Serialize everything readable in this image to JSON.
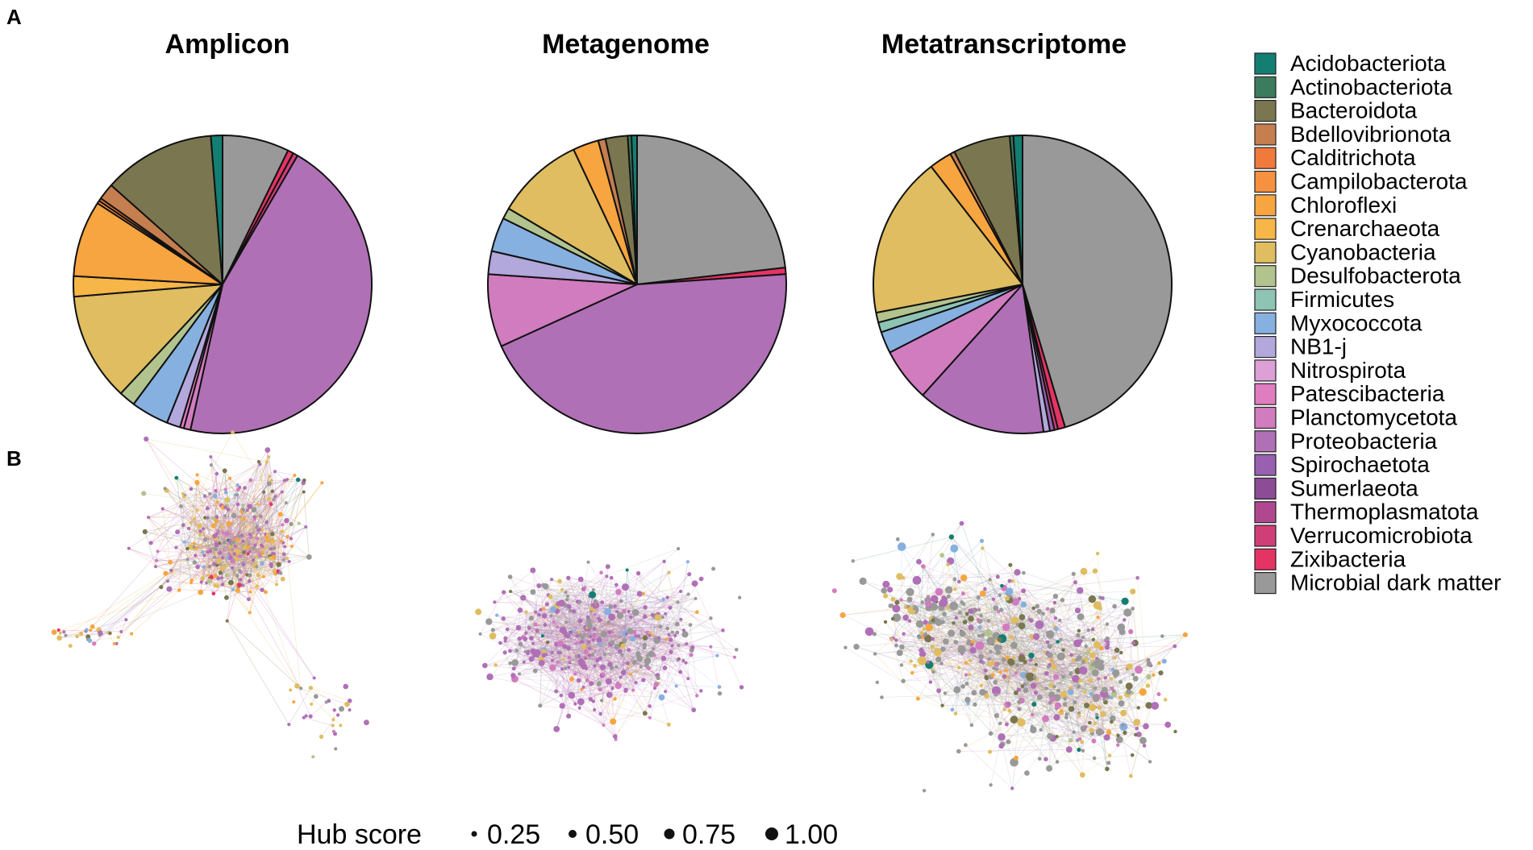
{
  "figure": {
    "panel_a": "A",
    "panel_b": "B"
  },
  "colors": {
    "Acidobacteriota": "#137f72",
    "Actinobacteriota": "#3c7c5e",
    "Bacteroidota": "#7a7650",
    "Bdellovibrionota": "#c57e4e",
    "Calditrichota": "#f07a3c",
    "Campilobacterota": "#f59140",
    "Chloroflexi": "#f7a540",
    "Crenarchaeota": "#f6b648",
    "Cyanobacteria": "#dfbd60",
    "Desulfobacterota": "#b2c38e",
    "Firmicutes": "#8ec4b4",
    "Myxococcota": "#86b0e0",
    "NB1-j": "#b2a8dc",
    "Nitrospirota": "#dca0d6",
    "Patescibacteria": "#e07cc0",
    "Planctomycetota": "#d27cc0",
    "Proteobacteria": "#b070b6",
    "Spirochaetota": "#9760b0",
    "Sumerlaeota": "#8c4c96",
    "Thermoplasmatota": "#b04890",
    "Verrucomicrobiota": "#d03e78",
    "Zixibacteria": "#e43464",
    "Microbial dark matter": "#999999"
  },
  "chart_data": [
    {
      "type": "pie",
      "title": "Amplicon",
      "unit": "percent",
      "slices": [
        {
          "label": "Microbial dark matter",
          "value": 6.9
        },
        {
          "label": "Zixibacteria",
          "value": 0.6
        },
        {
          "label": "Verrucomicrobiota",
          "value": 0.5
        },
        {
          "label": "Proteobacteria",
          "value": 43.0
        },
        {
          "label": "Planctomycetota",
          "value": 0.7
        },
        {
          "label": "Patescibacteria",
          "value": 0.4
        },
        {
          "label": "NB1-j",
          "value": 1.4
        },
        {
          "label": "Myxococcota",
          "value": 3.9
        },
        {
          "label": "Desulfobacterota",
          "value": 1.7
        },
        {
          "label": "Cyanobacteria",
          "value": 11.2
        },
        {
          "label": "Crenarchaeota",
          "value": 2.1
        },
        {
          "label": "Chloroflexi",
          "value": 7.9
        },
        {
          "label": "Campilobacterota",
          "value": 0.3
        },
        {
          "label": "Calditrichota",
          "value": 0.3
        },
        {
          "label": "Bdellovibrionota",
          "value": 1.7
        },
        {
          "label": "Bacteroidota",
          "value": 11.6
        },
        {
          "label": "Acidobacteriota",
          "value": 1.2
        }
      ]
    },
    {
      "type": "pie",
      "title": "Metagenome",
      "unit": "percent",
      "slices": [
        {
          "label": "Microbial dark matter",
          "value": 23.2
        },
        {
          "label": "Zixibacteria",
          "value": 0.7
        },
        {
          "label": "Proteobacteria",
          "value": 44.3
        },
        {
          "label": "Planctomycetota",
          "value": 7.9
        },
        {
          "label": "NB1-j",
          "value": 2.5
        },
        {
          "label": "Myxococcota",
          "value": 3.7
        },
        {
          "label": "Desulfobacterota",
          "value": 1.2
        },
        {
          "label": "Cyanobacteria",
          "value": 9.5
        },
        {
          "label": "Chloroflexi",
          "value": 2.8
        },
        {
          "label": "Bdellovibrionota",
          "value": 0.8
        },
        {
          "label": "Bacteroidota",
          "value": 2.4
        },
        {
          "label": "Actinobacteriota",
          "value": 0.4
        },
        {
          "label": "Acidobacteriota",
          "value": 0.6
        }
      ]
    },
    {
      "type": "pie",
      "title": "Metatranscriptome",
      "unit": "percent",
      "slices": [
        {
          "label": "Microbial dark matter",
          "value": 46.3
        },
        {
          "label": "Zixibacteria",
          "value": 0.8
        },
        {
          "label": "Verrucomicrobiota",
          "value": 0.4
        },
        {
          "label": "Spirochaetota",
          "value": 0.5
        },
        {
          "label": "NB1-j",
          "value": 0.7
        },
        {
          "label": "Proteobacteria",
          "value": 14.2
        },
        {
          "label": "Planctomycetota",
          "value": 5.9
        },
        {
          "label": "Myxococcota",
          "value": 2.4
        },
        {
          "label": "Firmicutes",
          "value": 1.1
        },
        {
          "label": "Desulfobacterota",
          "value": 1.1
        },
        {
          "label": "Cyanobacteria",
          "value": 17.9
        },
        {
          "label": "Chloroflexi",
          "value": 2.5
        },
        {
          "label": "Bdellovibrionota",
          "value": 0.5
        },
        {
          "label": "Bacteroidota",
          "value": 6.3
        },
        {
          "label": "Actinobacteriota",
          "value": 0.4
        },
        {
          "label": "Acidobacteriota",
          "value": 1.0
        }
      ]
    },
    {
      "type": "scatter",
      "title": "Amplicon network",
      "encoding": "co-occurrence network; node color = phylum, node size = hub score",
      "shape": "dense core with long tail to the left and a tail toward the lower right",
      "approx_nodes": 400
    },
    {
      "type": "scatter",
      "title": "Metagenome network",
      "encoding": "co-occurrence network; node color = phylum, node size = hub score",
      "shape": "roughly circular cloud, dark-matter nodes concentrated on the left",
      "approx_nodes": 400
    },
    {
      "type": "scatter",
      "title": "Metatranscriptome network",
      "encoding": "co-occurrence network; node color = phylum, node size = hub score",
      "shape": "large elliptical cloud with many dark-matter nodes",
      "approx_nodes": 550
    }
  ],
  "legend": {
    "items": [
      "Acidobacteriota",
      "Actinobacteriota",
      "Bacteroidota",
      "Bdellovibrionota",
      "Calditrichota",
      "Campilobacterota",
      "Chloroflexi",
      "Crenarchaeota",
      "Cyanobacteria",
      "Desulfobacterota",
      "Firmicutes",
      "Myxococcota",
      "NB1-j",
      "Nitrospirota",
      "Patescibacteria",
      "Planctomycetota",
      "Proteobacteria",
      "Spirochaetota",
      "Sumerlaeota",
      "Thermoplasmatota",
      "Verrucomicrobiota",
      "Zixibacteria",
      "Microbial dark matter"
    ]
  },
  "hub_score": {
    "title": "Hub score",
    "levels": [
      {
        "value": 0.25,
        "label": "0.25"
      },
      {
        "value": 0.5,
        "label": "0.50"
      },
      {
        "value": 0.75,
        "label": "0.75"
      },
      {
        "value": 1.0,
        "label": "1.00"
      }
    ]
  }
}
